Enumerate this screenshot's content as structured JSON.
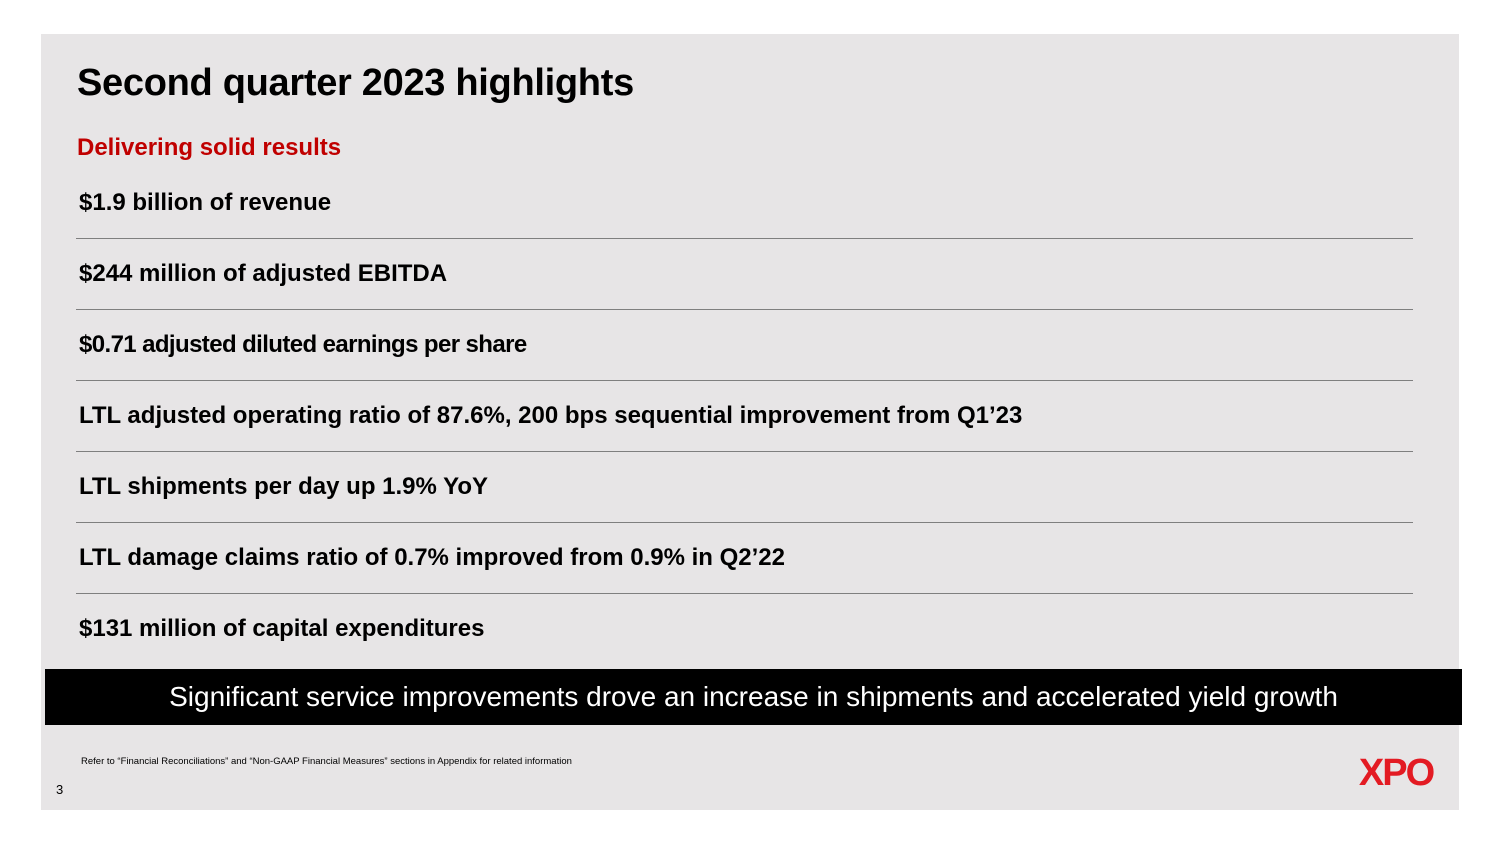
{
  "slide": {
    "title": "Second quarter 2023 highlights",
    "subtitle": "Delivering solid results",
    "highlights": [
      "$1.9 billion of revenue",
      "$244 million of adjusted EBITDA",
      "$0.71 adjusted diluted earnings per share",
      "LTL adjusted operating ratio of 87.6%, 200 bps sequential improvement from Q1’23",
      "LTL shipments per day up 1.9% YoY",
      "LTL damage claims ratio of 0.7% improved from 0.9% in Q2’22",
      "$131 million of capital expenditures"
    ],
    "banner": "Significant service improvements drove an increase in shipments and accelerated yield growth",
    "footnote": "Refer to “Financial Reconciliations” and “Non-GAAP Financial Measures” sections in Appendix for related information",
    "page_number": "3"
  },
  "logo": {
    "text": "XPO",
    "color": "#e31b23"
  },
  "colors": {
    "background": "#e7e5e6",
    "accent": "#c00000",
    "banner": "#000000",
    "divider": "#7f7f7f"
  }
}
